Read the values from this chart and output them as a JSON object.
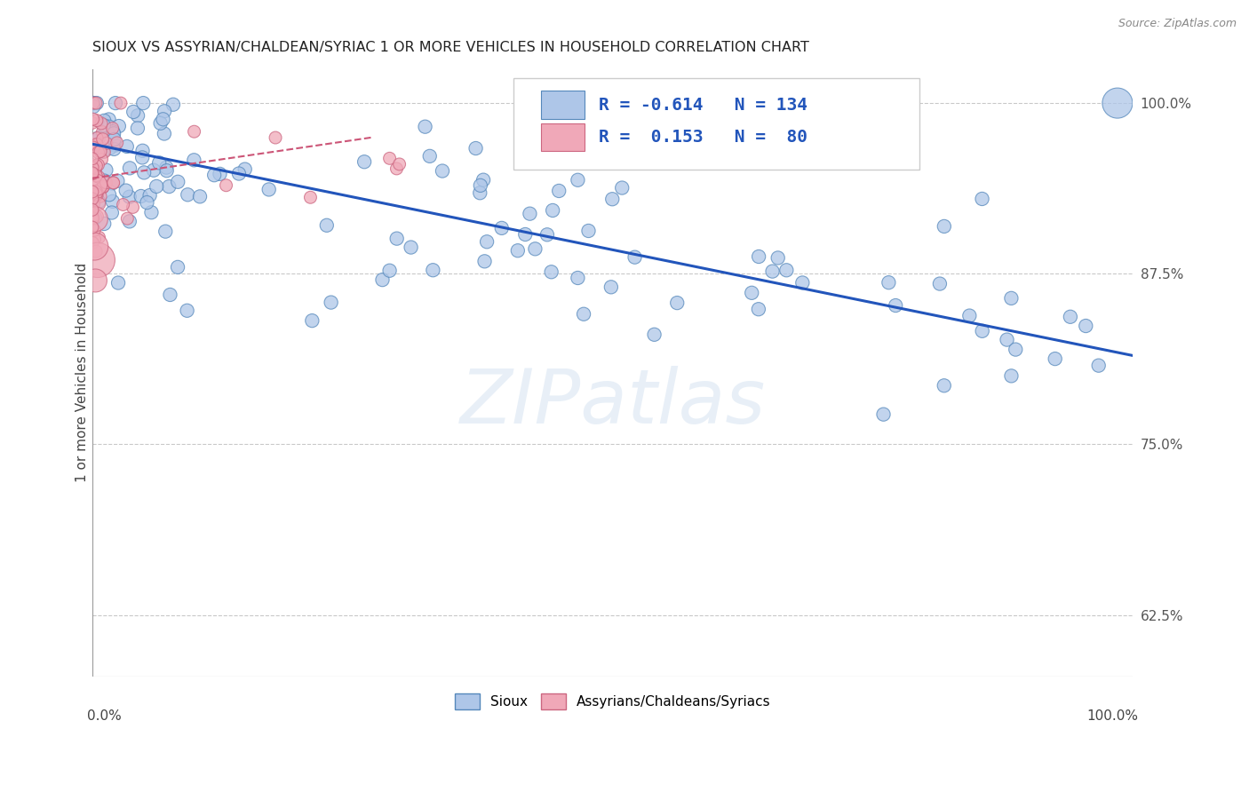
{
  "title": "SIOUX VS ASSYRIAN/CHALDEAN/SYRIAC 1 OR MORE VEHICLES IN HOUSEHOLD CORRELATION CHART",
  "source": "Source: ZipAtlas.com",
  "ylabel": "1 or more Vehicles in Household",
  "ytick_vals": [
    1.0,
    0.875,
    0.75,
    0.625
  ],
  "ytick_labels": [
    "100.0%",
    "87.5%",
    "75.0%",
    "62.5%"
  ],
  "legend_blue_R": "-0.614",
  "legend_blue_N": "134",
  "legend_pink_R": "0.153",
  "legend_pink_N": "80",
  "legend_blue_label": "Sioux",
  "legend_pink_label": "Assyrians/Chaldeans/Syriacs",
  "blue_color": "#aec6e8",
  "blue_edge": "#5588bb",
  "pink_color": "#f0a8b8",
  "pink_edge": "#cc6680",
  "blue_line_color": "#2255bb",
  "pink_line_color": "#cc5577",
  "background_color": "#ffffff",
  "grid_color": "#bbbbbb",
  "title_color": "#222222",
  "xlim": [
    0.0,
    1.0
  ],
  "ylim": [
    0.58,
    1.025
  ],
  "blue_trend_x": [
    0.0,
    1.0
  ],
  "blue_trend_y": [
    0.97,
    0.815
  ],
  "pink_trend_x": [
    0.0,
    0.27
  ],
  "pink_trend_y": [
    0.945,
    0.975
  ]
}
